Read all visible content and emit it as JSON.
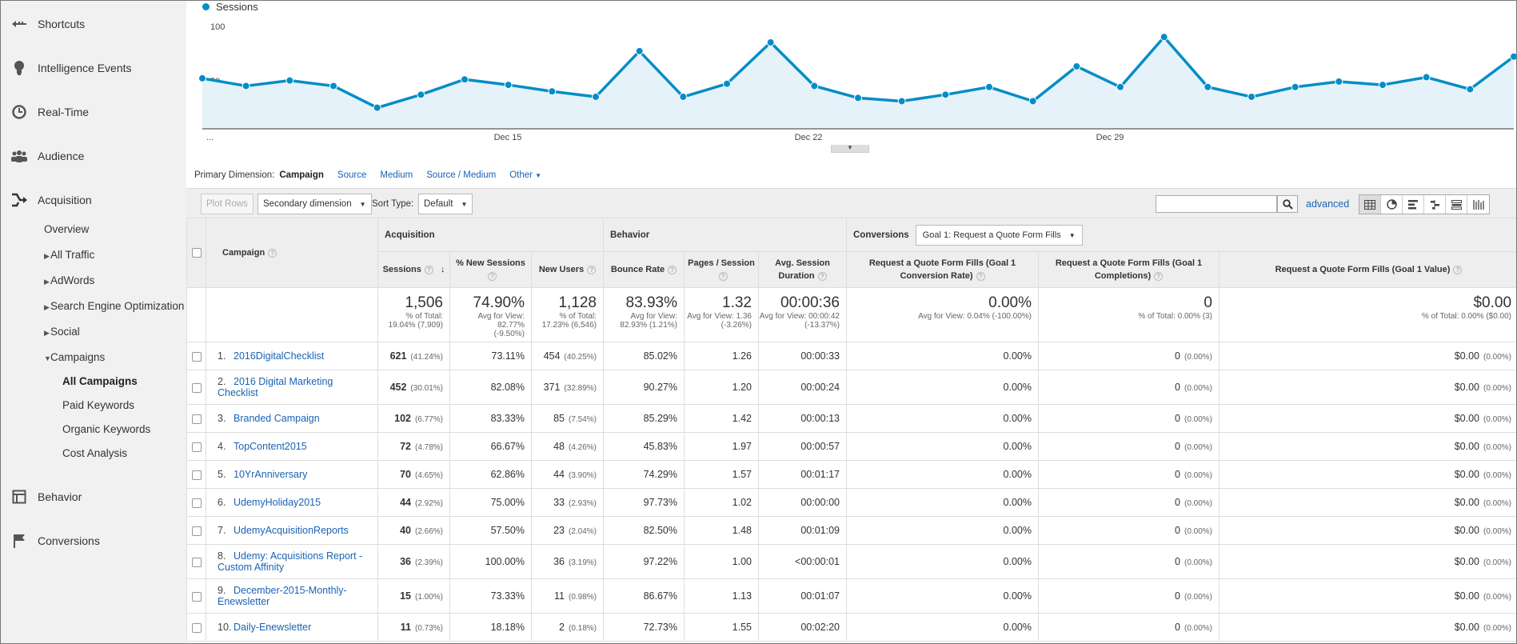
{
  "sidebar": {
    "top_items": [
      {
        "label": "Shortcuts",
        "icon": "shortcut-arrow-icon"
      },
      {
        "label": "Intelligence Events",
        "icon": "lightbulb-icon"
      },
      {
        "label": "Real-Time",
        "icon": "clock-icon"
      },
      {
        "label": "Audience",
        "icon": "people-icon"
      },
      {
        "label": "Acquisition",
        "icon": "acquisition-arrow-icon"
      }
    ],
    "acquisition_sub": [
      "Overview",
      "All Traffic",
      "AdWords",
      "Search Engine Optimization",
      "Social",
      "Campaigns"
    ],
    "campaign_sub": [
      "All Campaigns",
      "Paid Keywords",
      "Organic Keywords",
      "Cost Analysis"
    ],
    "bottom_items": [
      {
        "label": "Behavior",
        "icon": "behavior-icon"
      },
      {
        "label": "Conversions",
        "icon": "flag-icon"
      }
    ]
  },
  "chart": {
    "legend": "Sessions",
    "y_ticks": [
      "100",
      "50"
    ],
    "x_ticks": [
      "Dec 15",
      "Dec 22",
      "Dec 29"
    ],
    "x_start_label": "...",
    "color": "#058dc7"
  },
  "chart_data": {
    "type": "area",
    "ylim": [
      0,
      100
    ],
    "series": [
      {
        "name": "Sessions",
        "values": [
          53,
          46,
          51,
          46,
          26,
          38,
          52,
          47,
          41,
          36,
          78,
          36,
          48,
          86,
          46,
          35,
          32,
          38,
          45,
          32,
          64,
          45,
          91,
          45,
          36,
          45,
          50,
          47,
          54,
          43,
          73
        ]
      }
    ]
  },
  "dimensions": {
    "label": "Primary Dimension:",
    "current": "Campaign",
    "options": [
      "Source",
      "Medium",
      "Source / Medium",
      "Other"
    ]
  },
  "toolbar": {
    "plot_rows": "Plot Rows",
    "secondary_dimension": "Secondary dimension",
    "sort_type_label": "Sort Type:",
    "sort_type_value": "Default",
    "advanced": "advanced"
  },
  "table": {
    "groups": {
      "acquisition": "Acquisition",
      "behavior": "Behavior",
      "conversions": "Conversions",
      "goal_select": "Goal 1: Request a Quote Form Fills"
    },
    "headers": {
      "campaign": "Campaign",
      "sessions": "Sessions",
      "new_sessions": "% New Sessions",
      "new_users": "New Users",
      "bounce_rate": "Bounce Rate",
      "pages_session": "Pages / Session",
      "avg_duration": "Avg. Session Duration",
      "conv_rate": "Request a Quote Form Fills (Goal 1 Conversion Rate)",
      "completions": "Request a Quote Form Fills (Goal 1 Completions)",
      "value": "Request a Quote Form Fills (Goal 1 Value)"
    },
    "totals": {
      "sessions": {
        "big": "1,506",
        "sub1": "% of Total:",
        "sub2": "19.04% (7,909)"
      },
      "new_sessions": {
        "big": "74.90%",
        "sub1": "Avg for View: 82.77%",
        "sub2": "(-9.50%)"
      },
      "new_users": {
        "big": "1,128",
        "sub1": "% of Total:",
        "sub2": "17.23% (6,546)"
      },
      "bounce_rate": {
        "big": "83.93%",
        "sub1": "Avg for View:",
        "sub2": "82.93% (1.21%)"
      },
      "pages_session": {
        "big": "1.32",
        "sub1": "Avg for View: 1.36",
        "sub2": "(-3.26%)"
      },
      "avg_duration": {
        "big": "00:00:36",
        "sub1": "Avg for View: 00:00:42",
        "sub2": "(-13.37%)"
      },
      "conv_rate": {
        "big": "0.00%",
        "sub1": "Avg for View: 0.04% (-100.00%)",
        "sub2": ""
      },
      "completions": {
        "big": "0",
        "sub1": "% of Total: 0.00% (3)",
        "sub2": ""
      },
      "value": {
        "big": "$0.00",
        "sub1": "% of Total: 0.00% ($0.00)",
        "sub2": ""
      }
    },
    "rows": [
      {
        "num": "1.",
        "name": "2016DigitalChecklist",
        "sessions": "621",
        "sessions_pct": "(41.24%)",
        "new_sessions": "73.11%",
        "new_users": "454",
        "new_users_pct": "(40.25%)",
        "bounce": "85.02%",
        "pages": "1.26",
        "duration": "00:00:33",
        "conv_rate": "0.00%",
        "completions": "0",
        "completions_pct": "(0.00%)",
        "value": "$0.00",
        "value_pct": "(0.00%)"
      },
      {
        "num": "2.",
        "name": "2016 Digital Marketing Checklist",
        "sessions": "452",
        "sessions_pct": "(30.01%)",
        "new_sessions": "82.08%",
        "new_users": "371",
        "new_users_pct": "(32.89%)",
        "bounce": "90.27%",
        "pages": "1.20",
        "duration": "00:00:24",
        "conv_rate": "0.00%",
        "completions": "0",
        "completions_pct": "(0.00%)",
        "value": "$0.00",
        "value_pct": "(0.00%)"
      },
      {
        "num": "3.",
        "name": "Branded Campaign",
        "sessions": "102",
        "sessions_pct": "(6.77%)",
        "new_sessions": "83.33%",
        "new_users": "85",
        "new_users_pct": "(7.54%)",
        "bounce": "85.29%",
        "pages": "1.42",
        "duration": "00:00:13",
        "conv_rate": "0.00%",
        "completions": "0",
        "completions_pct": "(0.00%)",
        "value": "$0.00",
        "value_pct": "(0.00%)"
      },
      {
        "num": "4.",
        "name": "TopContent2015",
        "sessions": "72",
        "sessions_pct": "(4.78%)",
        "new_sessions": "66.67%",
        "new_users": "48",
        "new_users_pct": "(4.26%)",
        "bounce": "45.83%",
        "pages": "1.97",
        "duration": "00:00:57",
        "conv_rate": "0.00%",
        "completions": "0",
        "completions_pct": "(0.00%)",
        "value": "$0.00",
        "value_pct": "(0.00%)"
      },
      {
        "num": "5.",
        "name": "10YrAnniversary",
        "sessions": "70",
        "sessions_pct": "(4.65%)",
        "new_sessions": "62.86%",
        "new_users": "44",
        "new_users_pct": "(3.90%)",
        "bounce": "74.29%",
        "pages": "1.57",
        "duration": "00:01:17",
        "conv_rate": "0.00%",
        "completions": "0",
        "completions_pct": "(0.00%)",
        "value": "$0.00",
        "value_pct": "(0.00%)"
      },
      {
        "num": "6.",
        "name": "UdemyHoliday2015",
        "sessions": "44",
        "sessions_pct": "(2.92%)",
        "new_sessions": "75.00%",
        "new_users": "33",
        "new_users_pct": "(2.93%)",
        "bounce": "97.73%",
        "pages": "1.02",
        "duration": "00:00:00",
        "conv_rate": "0.00%",
        "completions": "0",
        "completions_pct": "(0.00%)",
        "value": "$0.00",
        "value_pct": "(0.00%)"
      },
      {
        "num": "7.",
        "name": "UdemyAcquisitionReports",
        "sessions": "40",
        "sessions_pct": "(2.66%)",
        "new_sessions": "57.50%",
        "new_users": "23",
        "new_users_pct": "(2.04%)",
        "bounce": "82.50%",
        "pages": "1.48",
        "duration": "00:01:09",
        "conv_rate": "0.00%",
        "completions": "0",
        "completions_pct": "(0.00%)",
        "value": "$0.00",
        "value_pct": "(0.00%)"
      },
      {
        "num": "8.",
        "name": "Udemy: Acquisitions Report - Custom Affinity",
        "sessions": "36",
        "sessions_pct": "(2.39%)",
        "new_sessions": "100.00%",
        "new_users": "36",
        "new_users_pct": "(3.19%)",
        "bounce": "97.22%",
        "pages": "1.00",
        "duration": "<00:00:01",
        "conv_rate": "0.00%",
        "completions": "0",
        "completions_pct": "(0.00%)",
        "value": "$0.00",
        "value_pct": "(0.00%)"
      },
      {
        "num": "9.",
        "name": "December-2015-Monthly-Enewsletter",
        "sessions": "15",
        "sessions_pct": "(1.00%)",
        "new_sessions": "73.33%",
        "new_users": "11",
        "new_users_pct": "(0.98%)",
        "bounce": "86.67%",
        "pages": "1.13",
        "duration": "00:01:07",
        "conv_rate": "0.00%",
        "completions": "0",
        "completions_pct": "(0.00%)",
        "value": "$0.00",
        "value_pct": "(0.00%)"
      },
      {
        "num": "10.",
        "name": "Daily-Enewsletter",
        "sessions": "11",
        "sessions_pct": "(0.73%)",
        "new_sessions": "18.18%",
        "new_users": "2",
        "new_users_pct": "(0.18%)",
        "bounce": "72.73%",
        "pages": "1.55",
        "duration": "00:02:20",
        "conv_rate": "0.00%",
        "completions": "0",
        "completions_pct": "(0.00%)",
        "value": "$0.00",
        "value_pct": "(0.00%)"
      }
    ]
  }
}
